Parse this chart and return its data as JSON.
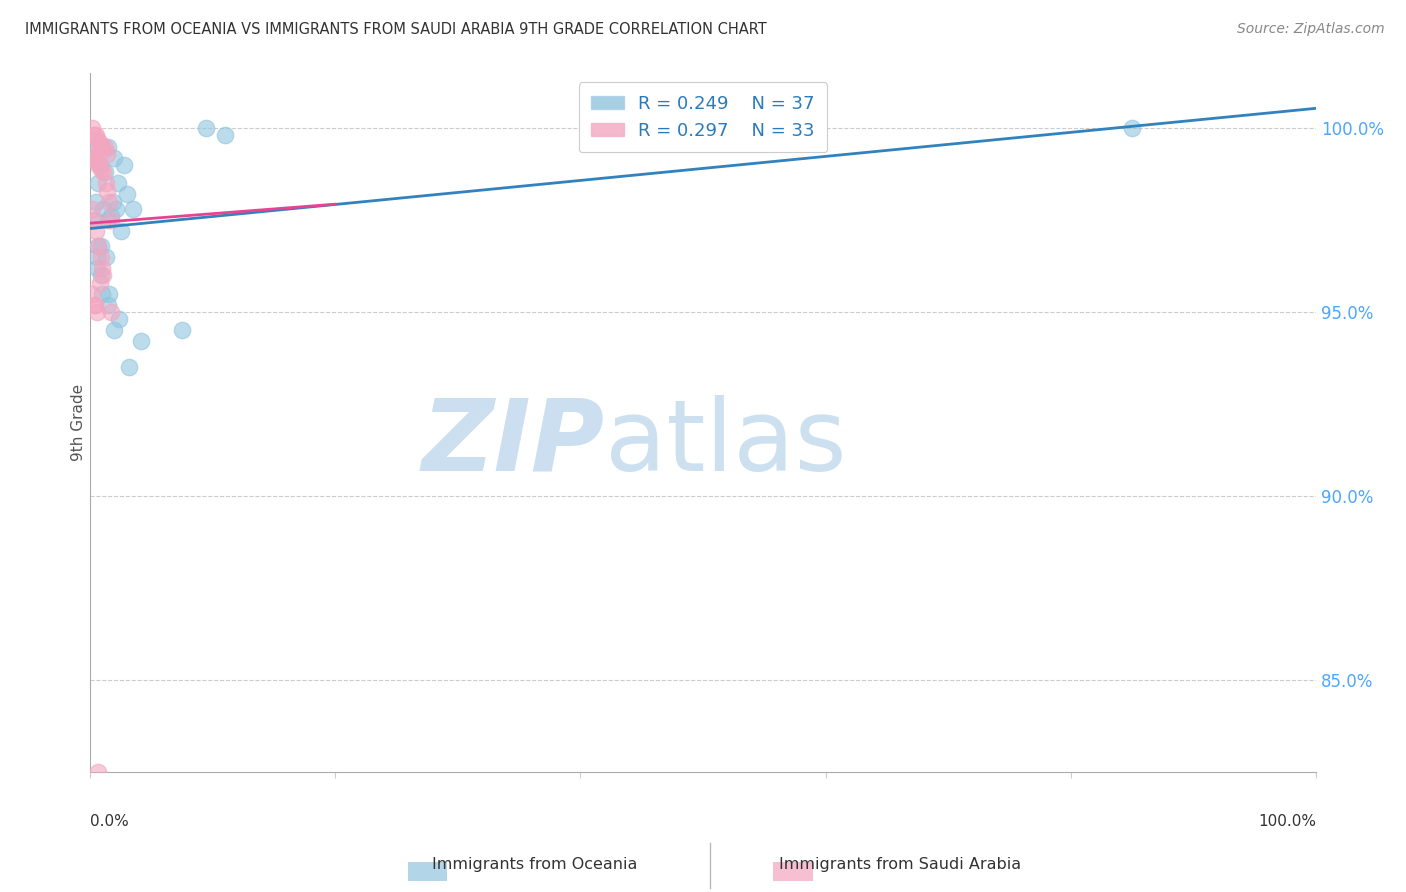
{
  "title": "IMMIGRANTS FROM OCEANIA VS IMMIGRANTS FROM SAUDI ARABIA 9TH GRADE CORRELATION CHART",
  "source": "Source: ZipAtlas.com",
  "ylabel": "9th Grade",
  "xlim": [
    0.0,
    100.0
  ],
  "ylim": [
    82.5,
    101.5
  ],
  "ytick_vals": [
    85.0,
    90.0,
    95.0,
    100.0
  ],
  "ytick_labels": [
    "85.0%",
    "90.0%",
    "95.0%",
    "100.0%"
  ],
  "R_oceania": 0.249,
  "N_oceania": 37,
  "R_saudi": 0.297,
  "N_saudi": 33,
  "color_oceania": "#92c5de",
  "color_saudi": "#f4a6c0",
  "trendline_color_oceania": "#3182bd",
  "trendline_color_saudi": "#e84393",
  "oceania_x": [
    0.5,
    1.0,
    1.5,
    0.3,
    0.8,
    1.2,
    2.0,
    2.8,
    0.7,
    0.5,
    1.1,
    1.7,
    2.3,
    3.0,
    0.4,
    0.7,
    1.3,
    1.9,
    2.5,
    3.5,
    0.6,
    0.9,
    1.5,
    2.1,
    0.6,
    0.9,
    1.6,
    2.4,
    3.2,
    4.2,
    1.0,
    1.5,
    2.0,
    7.5,
    9.5,
    11.0,
    85.0
  ],
  "oceania_y": [
    99.5,
    99.5,
    99.5,
    99.2,
    99.0,
    98.8,
    99.2,
    99.0,
    98.5,
    98.0,
    97.8,
    97.6,
    98.5,
    98.2,
    97.5,
    96.8,
    96.5,
    98.0,
    97.2,
    97.8,
    96.2,
    96.8,
    97.5,
    97.8,
    96.5,
    96.0,
    95.5,
    94.8,
    93.5,
    94.2,
    95.5,
    95.2,
    94.5,
    94.5,
    100.0,
    99.8,
    100.0
  ],
  "saudi_x": [
    0.2,
    0.3,
    0.5,
    0.6,
    0.8,
    0.9,
    1.0,
    1.2,
    1.4,
    0.2,
    0.4,
    0.5,
    0.7,
    0.9,
    1.1,
    1.3,
    1.4,
    1.6,
    1.7,
    0.2,
    0.3,
    0.5,
    0.7,
    0.9,
    1.1,
    0.2,
    0.4,
    0.6,
    0.8,
    1.0,
    1.7,
    0.7,
    0.4
  ],
  "saudi_y": [
    100.0,
    99.8,
    99.8,
    99.7,
    99.6,
    99.5,
    99.4,
    99.5,
    99.3,
    99.2,
    99.3,
    99.1,
    99.0,
    98.9,
    98.8,
    98.5,
    98.3,
    98.0,
    97.5,
    97.8,
    97.5,
    97.2,
    96.8,
    96.5,
    96.0,
    95.5,
    95.2,
    95.0,
    95.8,
    96.2,
    95.0,
    82.5,
    95.2
  ]
}
